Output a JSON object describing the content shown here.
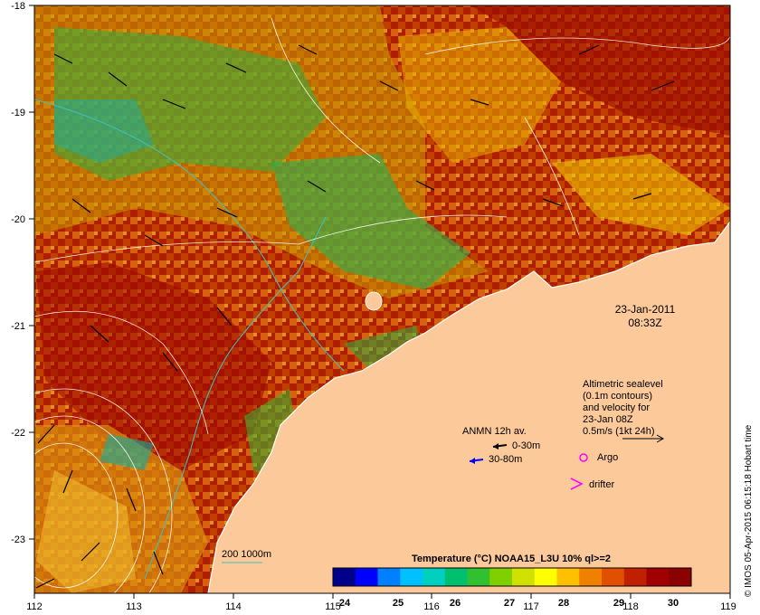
{
  "map": {
    "lon_ticks": [
      "112",
      "113",
      "114",
      "115",
      "116",
      "117",
      "118",
      "119"
    ],
    "lat_ticks": [
      "-18",
      "-19",
      "-20",
      "-21",
      "-22",
      "-23"
    ],
    "lon_range": [
      112,
      119
    ],
    "lat_range": [
      -23.65,
      -18.0
    ]
  },
  "annotations": {
    "date": "23-Jan-2011",
    "time": "08:33Z",
    "altimetry_lines": [
      "Altimetric sealevel",
      "(0.1m contours)",
      "and velocity for",
      "23-Jan 08Z",
      "0.5m/s (1kt 24h)"
    ],
    "legend_title": "ANMN 12h av.",
    "legend_0_30": "0-30m",
    "legend_30_80": "30-80m",
    "argo_label": "Argo",
    "drifter_label": "drifter",
    "isobath_label": "200  1000m",
    "credit": "© IMOS 05-Apr-2015 06:15:18 Hobart time"
  },
  "colorbar": {
    "title": "Temperature (°C) NOAA15_L3U 10% ql>=2",
    "ticks": [
      "24",
      "25",
      "26",
      "27",
      "28",
      "29",
      "30"
    ],
    "range": [
      23.6,
      30.3
    ],
    "colors": [
      "#00008b",
      "#0000ff",
      "#0080ff",
      "#00c0ff",
      "#00d0c0",
      "#00c070",
      "#30c030",
      "#80d000",
      "#d0e000",
      "#ffff00",
      "#ffc000",
      "#f08000",
      "#e05000",
      "#c02000",
      "#a00000",
      "#8b0000"
    ]
  },
  "styles": {
    "land": "#fbc99a",
    "argo_color": "#ff00ff",
    "drifter_color": "#ff00ff",
    "arrow_0_30": "#000000",
    "arrow_30_80": "#0000ff",
    "isobath_color": "#40c0c0"
  }
}
